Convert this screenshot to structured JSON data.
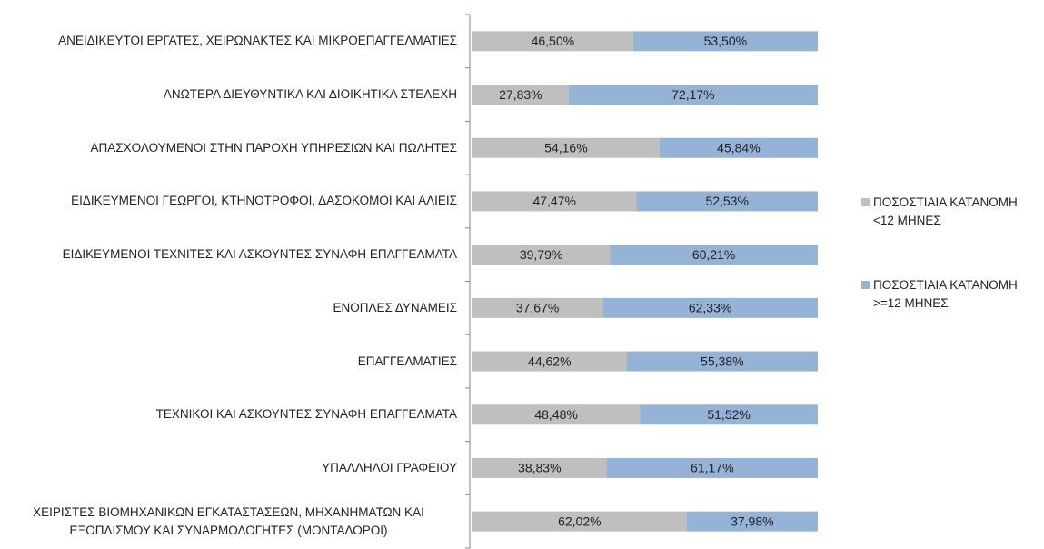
{
  "chart_data": {
    "type": "stacked_barh",
    "categories": [
      "ΑΝΕΙΔΙΚΕΥΤΟΙ ΕΡΓΑΤΕΣ, ΧΕΙΡΩΝΑΚΤΕΣ ΚΑΙ ΜΙΚΡΟΕΠΑΓΓΕΛΜΑΤΙΕΣ",
      "ΑΝΩΤΕΡΑ ΔΙΕΥΘΥΝΤΙΚΑ ΚΑΙ ΔΙΟΙΚΗΤΙΚΑ ΣΤΕΛΕΧΗ",
      "ΑΠΑΣΧΟΛΟΥΜΕΝΟΙ ΣΤΗΝ ΠΑΡΟΧΗ ΥΠΗΡΕΣΙΩΝ ΚΑΙ ΠΩΛΗΤΕΣ",
      "ΕΙΔΙΚΕΥΜΕΝΟΙ ΓΕΩΡΓΟΙ, ΚΤΗΝΟΤΡΟΦΟΙ, ΔΑΣΟΚΟΜΟΙ ΚΑΙ ΑΛΙΕΙΣ",
      "ΕΙΔΙΚΕΥΜΕΝΟΙ ΤΕΧΝΙΤΕΣ ΚΑΙ ΑΣΚΟΥΝΤΕΣ ΣΥΝΑΦΗ ΕΠΑΓΓΕΛΜΑΤΑ",
      "ΕΝΟΠΛΕΣ ΔΥΝΑΜΕΙΣ",
      "ΕΠΑΓΓΕΛΜΑΤΙΕΣ",
      "ΤΕΧΝΙΚΟΙ ΚΑΙ ΑΣΚΟΥΝΤΕΣ ΣΥΝΑΦΗ ΕΠΑΓΓΕΛΜΑΤΑ",
      "ΥΠΑΛΛΗΛΟΙ ΓΡΑΦΕΙΟΥ",
      "ΧΕΙΡΙΣΤΕΣ ΒΙΟΜΗΧΑΝΙΚΩΝ ΕΓΚΑΤΑΣΤΑΣΕΩΝ, ΜΗΧΑΝΗΜΑΤΩΝ ΚΑΙ\nΕΞΟΠΛΙΣΜΟΥ ΚΑΙ ΣΥΝΑΡΜΟΛΟΓΗΤΕΣ (ΜΟΝΤΑΔΟΡΟΙ)"
    ],
    "series": [
      {
        "name": "ΠΟΣΟΣΤΙΑΙΑ ΚΑΤΑΝΟΜΗ <12 ΜΗΝΕΣ",
        "color": "#bfbfbf",
        "values": [
          46.5,
          27.83,
          54.16,
          47.47,
          39.79,
          37.67,
          44.62,
          48.48,
          38.83,
          62.02
        ],
        "value_labels": [
          "46,50%",
          "27,83%",
          "54,16%",
          "47,47%",
          "39,79%",
          "37,67%",
          "44,62%",
          "48,48%",
          "38,83%",
          "62,02%"
        ]
      },
      {
        "name": "ΠΟΣΟΣΤΙΑΙΑ ΚΑΤΑΝΟΜΗ >=12 ΜΗΝΕΣ",
        "color": "#95b3d7",
        "values": [
          53.5,
          72.17,
          45.84,
          52.53,
          60.21,
          62.33,
          55.38,
          51.52,
          61.17,
          37.98
        ],
        "value_labels": [
          "53,50%",
          "72,17%",
          "45,84%",
          "52,53%",
          "60,21%",
          "62,33%",
          "55,38%",
          "51,52%",
          "61,17%",
          "37,98%"
        ]
      }
    ],
    "xlim": [
      0,
      100
    ],
    "legend": "right"
  }
}
